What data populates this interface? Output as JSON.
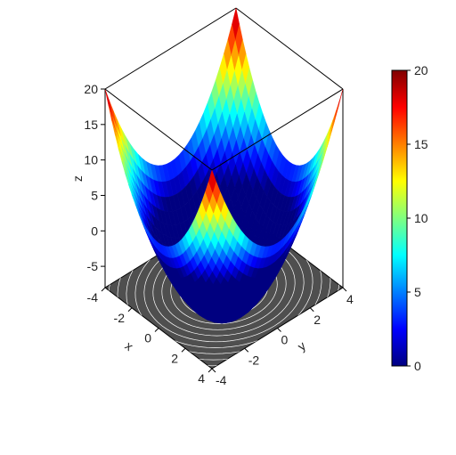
{
  "chart_data": {
    "type": "surface3d",
    "function": "z = x^2 + y^2 - 12",
    "x_range": [
      -4,
      4
    ],
    "y_range": [
      -4,
      4
    ],
    "grid_steps": 32,
    "projected_contour_floor": true,
    "contour_levels_on_floor": 22,
    "axes": {
      "x": {
        "label": "x",
        "ticks": [
          -4,
          -2,
          0,
          2,
          4
        ]
      },
      "y": {
        "label": "y",
        "ticks": [
          -4,
          -2,
          0,
          2,
          4
        ]
      },
      "z": {
        "label": "z",
        "ticks": [
          -5,
          0,
          5,
          10,
          15,
          20
        ],
        "range": [
          -8,
          20
        ]
      }
    },
    "colorbar": {
      "min": 0,
      "max": 20,
      "ticks": [
        0,
        5,
        10,
        15,
        20
      ],
      "palette": "jet",
      "palette_stops": [
        "#000080",
        "#0000ff",
        "#00ffff",
        "#ffff00",
        "#ff0000",
        "#800000"
      ]
    }
  }
}
